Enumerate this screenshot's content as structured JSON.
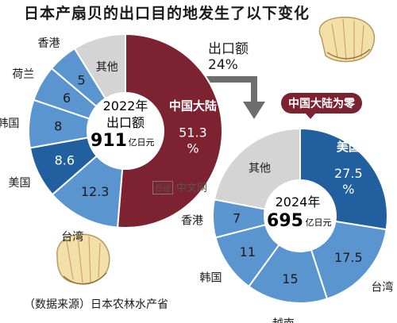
{
  "header": {
    "title": "日本产扇贝的出口目的地发生了以下变化"
  },
  "change": {
    "line1": "出口额",
    "line2": "24%"
  },
  "callout": {
    "text": "中国大陆为零"
  },
  "source": {
    "text": "（数据来源）日本农林水产省"
  },
  "watermark": {
    "text": "中文网"
  },
  "chart_data": [
    {
      "type": "pie",
      "year_label": "2022年",
      "total_label": "出口额",
      "total_value": "911",
      "total_unit": "亿日元",
      "slices": [
        {
          "name": "中国大陆",
          "value": 51.3,
          "label": "51.3\n%",
          "color": "#7c2230"
        },
        {
          "name": "台湾",
          "value": 12.3,
          "label": "12.3",
          "color": "#5b95cf"
        },
        {
          "name": "美国",
          "value": 8.6,
          "label": "8.6",
          "color": "#215f9e"
        },
        {
          "name": "韩国",
          "value": 8,
          "label": "8",
          "color": "#5b95cf"
        },
        {
          "name": "荷兰",
          "value": 6,
          "label": "6",
          "color": "#5b95cf"
        },
        {
          "name": "香港",
          "value": 5,
          "label": "5",
          "color": "#5b95cf"
        },
        {
          "name": "其他",
          "value": 8.8,
          "label": "",
          "color": "#d4d4d4"
        }
      ]
    },
    {
      "type": "pie",
      "year_label": "2024年",
      "total_value": "695",
      "total_unit": "亿日元",
      "slices": [
        {
          "name": "美国",
          "value": 27.5,
          "label": "27.5\n%",
          "color": "#215f9e"
        },
        {
          "name": "台湾",
          "value": 17.5,
          "label": "17.5",
          "color": "#5b95cf"
        },
        {
          "name": "越南",
          "value": 15,
          "label": "15",
          "color": "#5b95cf"
        },
        {
          "name": "韩国",
          "value": 11,
          "label": "11",
          "color": "#5b95cf"
        },
        {
          "name": "香港",
          "value": 7,
          "label": "7",
          "color": "#5b95cf"
        },
        {
          "name": "其他",
          "value": 22,
          "label": "",
          "color": "#d4d4d4"
        }
      ]
    }
  ]
}
